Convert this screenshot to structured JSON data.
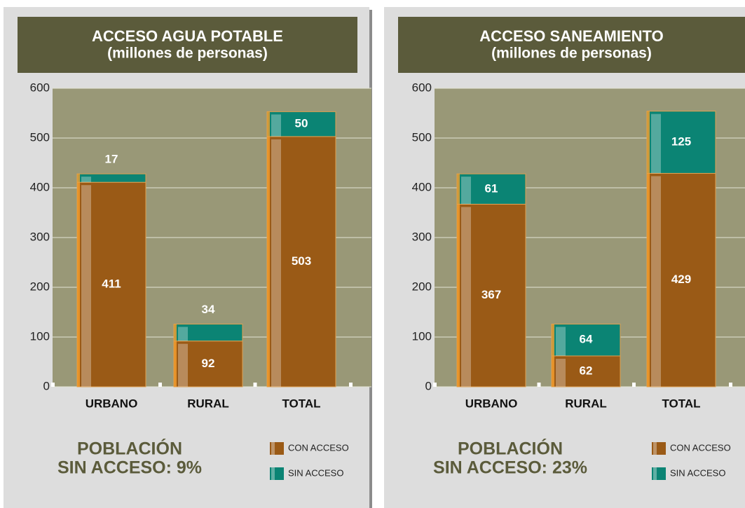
{
  "chart_data": [
    {
      "type": "bar",
      "stacked": true,
      "title": "ACCESO AGUA POTABLE",
      "subtitle": "(millones de personas)",
      "categories": [
        "URBANO",
        "RURAL",
        "TOTAL"
      ],
      "series": [
        {
          "name": "CON ACCESO",
          "color": "#9a5a16",
          "values": [
            411,
            92,
            503
          ]
        },
        {
          "name": "SIN ACCESO",
          "color": "#0b8474",
          "values": [
            17,
            34,
            50
          ]
        }
      ],
      "ylim": [
        0,
        600
      ],
      "yticks": [
        0,
        100,
        200,
        300,
        400,
        500,
        600
      ],
      "grid": true,
      "annotation": [
        "POBLACIÓN",
        "SIN ACCESO: 9%"
      ]
    },
    {
      "type": "bar",
      "stacked": true,
      "title": "ACCESO SANEAMIENTO",
      "subtitle": "(millones de personas)",
      "categories": [
        "URBANO",
        "RURAL",
        "TOTAL"
      ],
      "series": [
        {
          "name": "CON ACCESO",
          "color": "#9a5a16",
          "values": [
            367,
            62,
            429
          ]
        },
        {
          "name": "SIN ACCESO",
          "color": "#0b8474",
          "values": [
            61,
            64,
            125
          ]
        }
      ],
      "ylim": [
        0,
        600
      ],
      "yticks": [
        0,
        100,
        200,
        300,
        400,
        500,
        600
      ],
      "grid": true,
      "annotation": [
        "POBLACIÓN",
        "SIN ACCESO: 23%"
      ]
    }
  ]
}
